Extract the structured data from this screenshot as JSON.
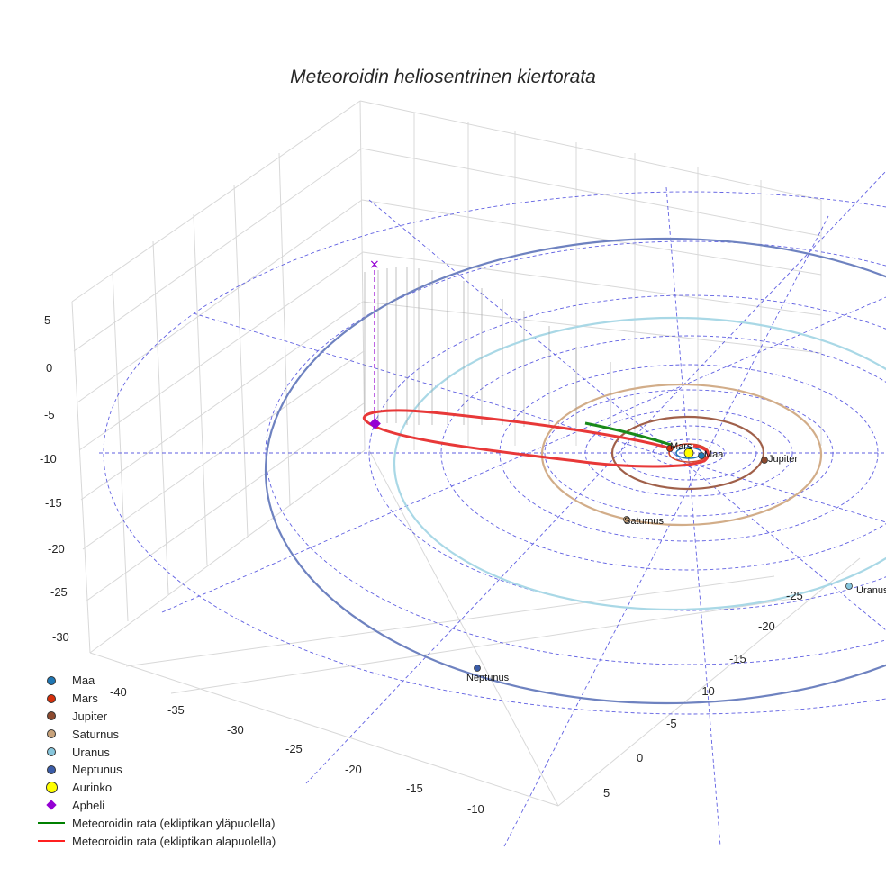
{
  "chart_data": {
    "type": "scatter3d",
    "title": "Meteoroidin heliosentrinen kiertorata",
    "xlabel": "",
    "ylabel": "",
    "zlabel": "",
    "axes": {
      "x_ticks": [
        "-40",
        "-35",
        "-30",
        "-25",
        "-20",
        "-15",
        "-10"
      ],
      "y_ticks": [
        "-25",
        "-20",
        "-15",
        "-10",
        "-5",
        "0",
        "5"
      ],
      "z_ticks": [
        "5",
        "0",
        "-5",
        "-10",
        "-15",
        "-20",
        "-25",
        "-30"
      ],
      "grid": true
    },
    "bodies": [
      {
        "name": "Maa",
        "label": "Maa",
        "color": "#1f77b4",
        "orbit_radius_au": 1.0
      },
      {
        "name": "Mars",
        "label": "Mars",
        "color": "#d62f0b",
        "orbit_radius_au": 1.52
      },
      {
        "name": "Jupiter",
        "label": "Jupiter",
        "color": "#8c4a2f",
        "orbit_radius_au": 5.2
      },
      {
        "name": "Saturnus",
        "label": "Saturnus",
        "color": "#c8a27a",
        "orbit_radius_au": 9.5
      },
      {
        "name": "Uranus",
        "label": "Uranus",
        "color": "#87c6dc",
        "orbit_radius_au": 19.2
      },
      {
        "name": "Neptunus",
        "label": "Neptunus",
        "color": "#3b5ca8",
        "orbit_radius_au": 30.1
      },
      {
        "name": "Aurinko",
        "label": "",
        "color": "#ffff00",
        "orbit_radius_au": 0
      }
    ],
    "aphelion": {
      "label": "Apheli",
      "color": "#9400d3",
      "distance_au_approx": 44
    },
    "meteoroid_orbit": {
      "above_ecliptic": {
        "label": "Meteoroidin rata (ekliptikan yläpuolella)",
        "color": "#008000"
      },
      "below_ecliptic": {
        "label": "Meteoroidin rata (ekliptikan alapuolella)",
        "color": "#ff2020"
      }
    },
    "legend": [
      "Maa",
      "Mars",
      "Jupiter",
      "Saturnus",
      "Uranus",
      "Neptunus",
      "Aurinko",
      "Apheli",
      "Meteoroidin rata (ekliptikan yläpuolella)",
      "Meteoroidin rata (ekliptikan alapuolella)"
    ],
    "legend_position": "lower left",
    "ecliptic_grid": {
      "style": "dashed",
      "color": "#4040e0",
      "rings": 9
    }
  },
  "legend": {
    "items": [
      {
        "label": "Maa",
        "kind": "dot",
        "color": "#1f77b4"
      },
      {
        "label": "Mars",
        "kind": "dot",
        "color": "#d62f0b"
      },
      {
        "label": "Jupiter",
        "kind": "dot",
        "color": "#8c4a2f"
      },
      {
        "label": "Saturnus",
        "kind": "dot",
        "color": "#c8a27a"
      },
      {
        "label": "Uranus",
        "kind": "dot",
        "color": "#87c6dc"
      },
      {
        "label": "Neptunus",
        "kind": "dot",
        "color": "#3b5ca8"
      },
      {
        "label": "Aurinko",
        "kind": "dot-lg",
        "color": "#ffff00"
      },
      {
        "label": "Apheli",
        "kind": "diamond",
        "color": "#9400d3"
      },
      {
        "label": "Meteoroidin rata (ekliptikan yläpuolella)",
        "kind": "line",
        "color": "#008000"
      },
      {
        "label": "Meteoroidin rata (ekliptikan alapuolella)",
        "kind": "line",
        "color": "#ff2020"
      }
    ]
  },
  "labels": {
    "maa": "Maa",
    "mars": "Mars",
    "jupiter": "Jupiter",
    "saturnus": "Saturnus",
    "uranus": "Uranus",
    "neptunus": "Neptunus"
  }
}
